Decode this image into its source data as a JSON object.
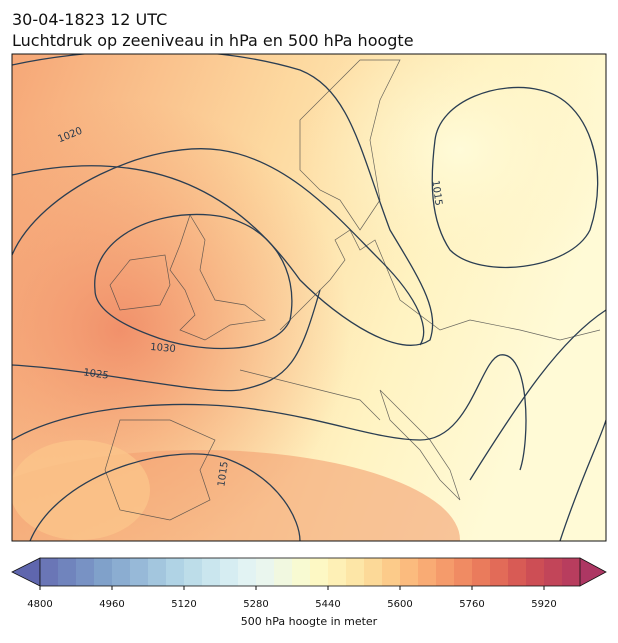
{
  "header": {
    "date": "30-04-1823 12 UTC",
    "title": "Luchtdruk op zeeniveau in hPa en 500 hPa hoogte"
  },
  "map": {
    "contour_labels": [
      "1020",
      "1015",
      "1030",
      "1025",
      "1015"
    ]
  },
  "colorbar": {
    "label": "500 hPa hoogte in meter",
    "lim": [
      4800,
      6000
    ],
    "ticks": [
      4800,
      4960,
      5120,
      5280,
      5440,
      5600,
      5760,
      5920
    ],
    "colors": [
      "#6a76b6",
      "#7084bd",
      "#7892c4",
      "#80a1ca",
      "#8badd1",
      "#97b9d8",
      "#a3c6de",
      "#b0d3e5",
      "#bddde9",
      "#cae6ee",
      "#d6edf2",
      "#e2f3f3",
      "#eaf6ee",
      "#f1f8e0",
      "#f8fad2",
      "#fdf8c4",
      "#fef0b6",
      "#fde6a7",
      "#fcd998",
      "#fccb8a",
      "#fbbb7e",
      "#f9ab74",
      "#f59b6b",
      "#f08b63",
      "#ea7b5c",
      "#e26b58",
      "#d85b55",
      "#cd4e55",
      "#c24559",
      "#b83d5e"
    ]
  }
}
